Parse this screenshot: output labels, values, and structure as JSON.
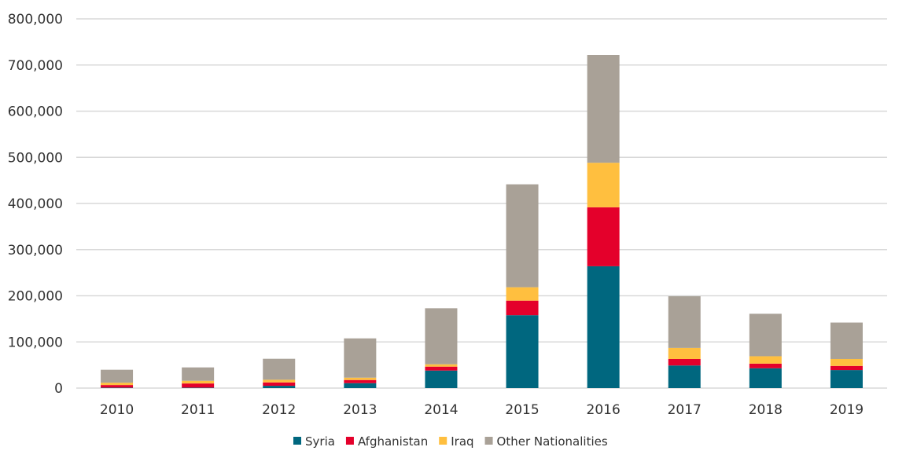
{
  "chart_data": {
    "type": "bar",
    "stacked": true,
    "categories": [
      "2010",
      "2011",
      "2012",
      "2013",
      "2014",
      "2015",
      "2016",
      "2017",
      "2018",
      "2019"
    ],
    "series": [
      {
        "name": "Syria",
        "color": "#00677F",
        "values": [
          1000,
          1000,
          5000,
          10700,
          38000,
          158000,
          264000,
          49000,
          43000,
          39000
        ]
      },
      {
        "name": "Afghanistan",
        "color": "#E4002B",
        "values": [
          5600,
          9000,
          7300,
          6800,
          8500,
          31500,
          127700,
          14000,
          10000,
          9000
        ]
      },
      {
        "name": "Iraq",
        "color": "#FFBF3F",
        "values": [
          5100,
          5800,
          5800,
          5100,
          5100,
          29000,
          96500,
          24000,
          16000,
          15000
        ]
      },
      {
        "name": "Other Nationalities",
        "color": "#A9A197",
        "values": [
          28000,
          29000,
          45400,
          85100,
          121400,
          223000,
          233500,
          112000,
          92000,
          79000
        ]
      }
    ],
    "ylim": [
      0,
      800000
    ],
    "yticks": [
      "0",
      "100,000",
      "200,000",
      "300,000",
      "400,000",
      "500,000",
      "600,000",
      "700,000",
      "800,000"
    ],
    "grid": true,
    "legend_position": "bottom"
  }
}
